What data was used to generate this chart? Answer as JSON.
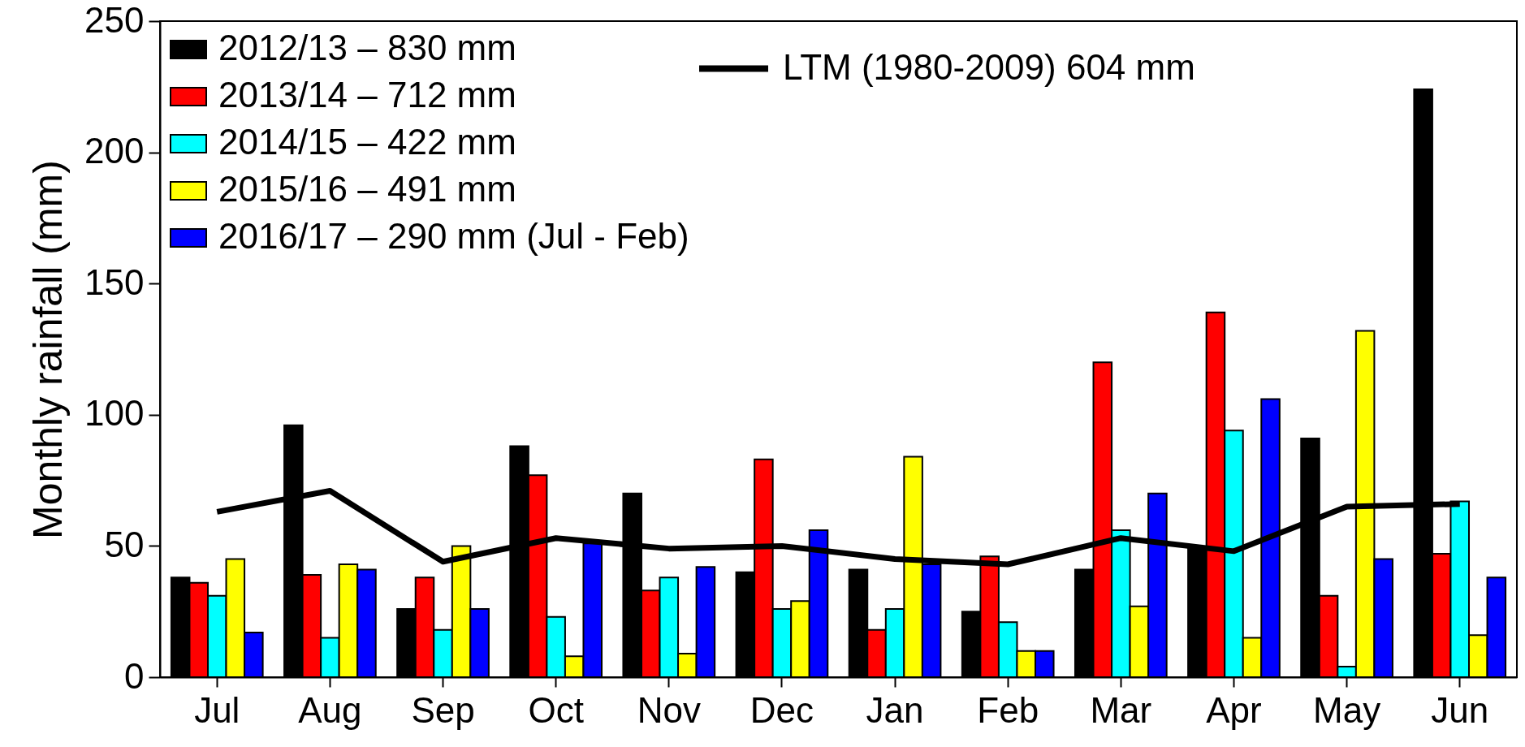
{
  "chart_data": {
    "type": "bar",
    "ylabel": "Monthly rainfall (mm)",
    "categories": [
      "Jul",
      "Aug",
      "Sep",
      "Oct",
      "Nov",
      "Dec",
      "Jan",
      "Feb",
      "Mar",
      "Apr",
      "May",
      "Jun"
    ],
    "ylim": [
      0,
      250
    ],
    "yticks": [
      0,
      50,
      100,
      150,
      200,
      250
    ],
    "legend": "top left",
    "series": [
      {
        "name": "2012/13 – 830 mm",
        "color": "#000000",
        "values": [
          38,
          96,
          26,
          88,
          70,
          40,
          41,
          25,
          41,
          49,
          91,
          224
        ]
      },
      {
        "name": "2013/14 – 712 mm",
        "color": "#ff0000",
        "values": [
          36,
          39,
          38,
          77,
          33,
          83,
          18,
          46,
          120,
          139,
          31,
          47
        ]
      },
      {
        "name": "2014/15 – 422 mm",
        "color": "#00ffff",
        "values": [
          31,
          15,
          18,
          23,
          38,
          26,
          26,
          21,
          56,
          94,
          4,
          67
        ]
      },
      {
        "name": "2015/16 – 491 mm",
        "color": "#ffff00",
        "values": [
          45,
          43,
          50,
          8,
          9,
          29,
          84,
          10,
          27,
          15,
          132,
          16
        ]
      },
      {
        "name": "2016/17 – 290 mm (Jul - Feb)",
        "color": "#0000ff",
        "values": [
          17,
          41,
          26,
          51,
          42,
          56,
          43,
          10,
          70,
          106,
          45,
          38
        ]
      },
      {
        "name": "LTM (1980-2009) 604 mm",
        "color": "#000000",
        "type": "line",
        "values": [
          63,
          71,
          44,
          53,
          49,
          50,
          45,
          43,
          53,
          48,
          65,
          66
        ]
      }
    ]
  }
}
